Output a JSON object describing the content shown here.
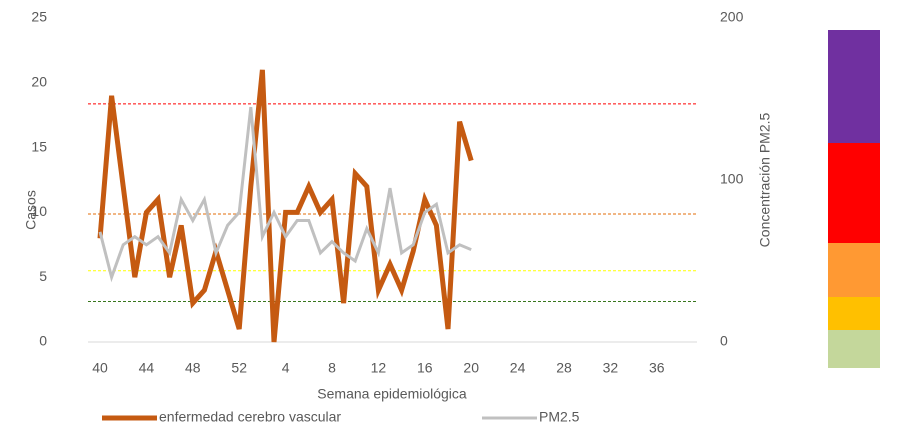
{
  "chart_data": {
    "type": "line",
    "x_label": "Semana epidemiológica",
    "y_label": "Casos",
    "y2_label": "Concentración PM2.5",
    "categories": [
      "40",
      null,
      null,
      null,
      "44",
      null,
      null,
      null,
      "48",
      null,
      null,
      null,
      "52",
      null,
      null,
      null,
      "4",
      null,
      null,
      null,
      "8",
      null,
      null,
      null,
      "12",
      null,
      null,
      null,
      "16",
      null,
      null,
      null,
      "20",
      null,
      null,
      null,
      "24",
      null,
      null,
      null,
      "28",
      null,
      null,
      null,
      "32",
      null,
      null,
      null,
      "36",
      null,
      null,
      null
    ],
    "series": [
      {
        "name": "enfermedad cerebro vascular",
        "color": "#c55a11",
        "values": [
          8,
          19,
          12,
          5,
          10,
          11,
          5,
          9,
          3,
          4,
          7,
          4,
          1,
          12,
          21,
          0,
          10,
          10,
          12,
          10,
          11,
          3,
          13,
          12,
          4,
          6,
          4,
          7,
          11,
          9,
          1,
          17,
          14,
          null,
          null,
          null,
          null,
          null,
          null,
          null,
          null,
          null,
          null,
          null,
          null,
          null,
          null,
          null,
          null,
          null,
          null,
          null
        ]
      },
      {
        "name": "PM2.5",
        "color": "#c0c0c0",
        "axis": "y2",
        "values": [
          68,
          40,
          60,
          65,
          60,
          65,
          55,
          88,
          75,
          88,
          55,
          72,
          80,
          145,
          65,
          80,
          65,
          75,
          75,
          55,
          62,
          55,
          50,
          70,
          55,
          95,
          55,
          60,
          80,
          85,
          55,
          60,
          57,
          null,
          null,
          null,
          null,
          null,
          null,
          null,
          null,
          null,
          null,
          null,
          null,
          null,
          null,
          null,
          null,
          null,
          null,
          null
        ]
      }
    ],
    "reference_lines": [
      {
        "value": 147,
        "color": "#ff0000",
        "axis": "y2"
      },
      {
        "value": 79,
        "color": "#e36c09",
        "axis": "y2"
      },
      {
        "value": 44,
        "color": "#ffff00",
        "axis": "y2"
      },
      {
        "value": 25,
        "color": "#38761d",
        "axis": "y2"
      }
    ],
    "ylim": [
      0,
      25
    ],
    "yticks": [
      0,
      5,
      10,
      15,
      20,
      25
    ],
    "y2lim": [
      0,
      200
    ],
    "y2ticks": [
      0,
      100,
      200
    ],
    "grid": false,
    "legend": "bottom"
  }
}
